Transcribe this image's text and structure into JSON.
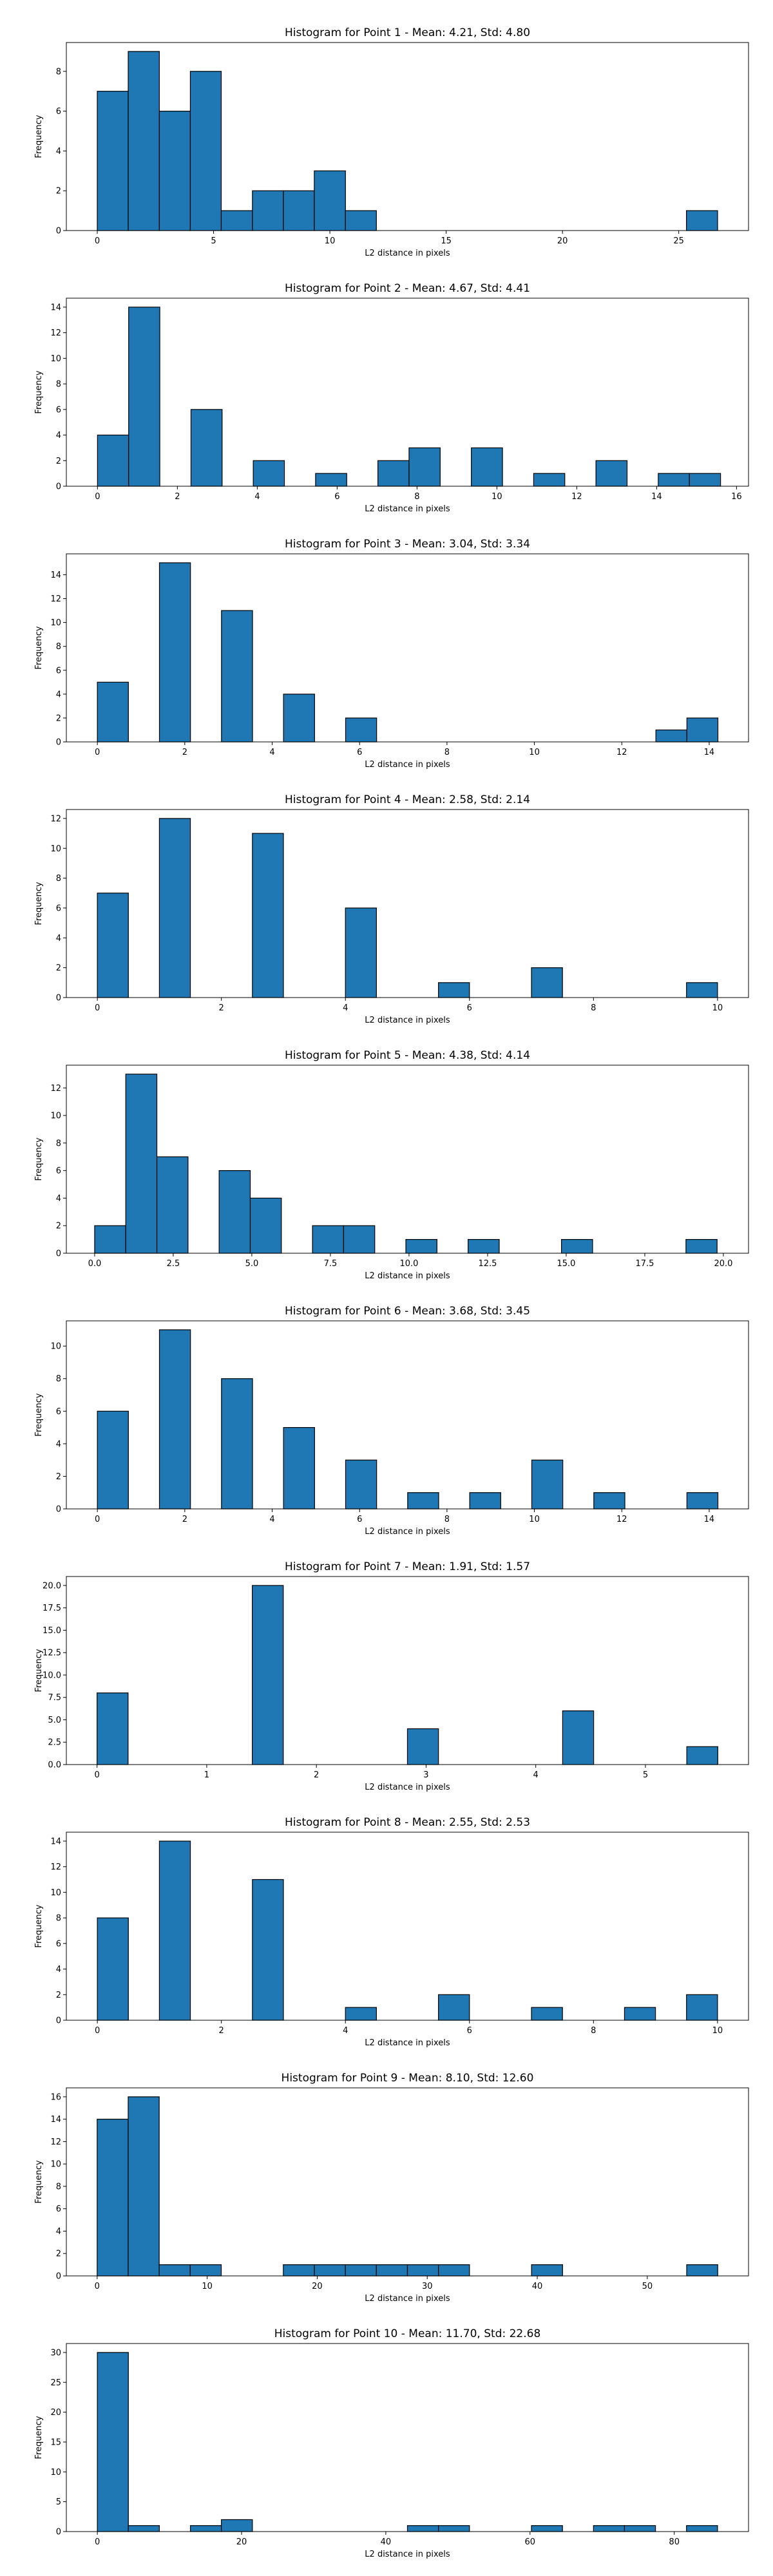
{
  "figure": {
    "bar_color": "#1f77b4",
    "edge_color": "#000000"
  },
  "chart_data": [
    {
      "type": "bar",
      "title": "Histogram for Point 1 - Mean: 4.21, Std: 4.80",
      "xlabel": "L2 distance in pixels",
      "ylabel": "Frequency",
      "xlim": [
        -1.33,
        28.0
      ],
      "ylim": [
        0,
        9.45
      ],
      "xticks": [
        0,
        5,
        10,
        15,
        20,
        25
      ],
      "xtick_labels": [
        "0",
        "5",
        "10",
        "15",
        "20",
        "25"
      ],
      "yticks": [
        0,
        2,
        4,
        6,
        8
      ],
      "bin_edges": [
        0.0,
        1.33,
        2.67,
        4.0,
        5.33,
        6.67,
        8.0,
        9.33,
        10.67,
        12.0,
        13.33,
        14.67,
        16.0,
        17.33,
        18.67,
        20.0,
        21.33,
        22.67,
        24.0,
        25.33,
        26.67
      ],
      "values": [
        7,
        9,
        6,
        8,
        1,
        2,
        2,
        3,
        1,
        0,
        0,
        0,
        0,
        0,
        0,
        0,
        0,
        0,
        0,
        1
      ]
    },
    {
      "type": "bar",
      "title": "Histogram for Point 2 - Mean: 4.67, Std: 4.41",
      "xlabel": "L2 distance in pixels",
      "ylabel": "Frequency",
      "xlim": [
        -0.78,
        16.3
      ],
      "ylim": [
        0,
        14.7
      ],
      "xticks": [
        0,
        2,
        4,
        6,
        8,
        10,
        12,
        14,
        16
      ],
      "xtick_labels": [
        "0",
        "2",
        "4",
        "6",
        "8",
        "10",
        "12",
        "14",
        "16"
      ],
      "yticks": [
        0,
        2,
        4,
        6,
        8,
        10,
        12,
        14
      ],
      "bin_edges": [
        0.0,
        0.78,
        1.56,
        2.34,
        3.12,
        3.9,
        4.68,
        5.46,
        6.24,
        7.02,
        7.8,
        8.58,
        9.36,
        10.14,
        10.92,
        11.7,
        12.48,
        13.26,
        14.04,
        14.82,
        15.6
      ],
      "values": [
        4,
        14,
        0,
        6,
        0,
        2,
        0,
        1,
        0,
        2,
        3,
        0,
        3,
        0,
        1,
        0,
        2,
        0,
        1,
        1
      ]
    },
    {
      "type": "bar",
      "title": "Histogram for Point 3 - Mean: 3.04, Std: 3.34",
      "xlabel": "L2 distance in pixels",
      "ylabel": "Frequency",
      "xlim": [
        -0.71,
        14.9
      ],
      "ylim": [
        0,
        15.75
      ],
      "xticks": [
        0,
        2,
        4,
        6,
        8,
        10,
        12,
        14
      ],
      "xtick_labels": [
        "0",
        "2",
        "4",
        "6",
        "8",
        "10",
        "12",
        "14"
      ],
      "yticks": [
        0,
        2,
        4,
        6,
        8,
        10,
        12,
        14
      ],
      "bin_edges": [
        0.0,
        0.71,
        1.42,
        2.13,
        2.84,
        3.55,
        4.26,
        4.97,
        5.68,
        6.39,
        7.1,
        7.81,
        8.52,
        9.23,
        9.94,
        10.65,
        11.36,
        12.07,
        12.78,
        13.49,
        14.2
      ],
      "values": [
        5,
        0,
        15,
        0,
        11,
        0,
        4,
        0,
        2,
        0,
        0,
        0,
        0,
        0,
        0,
        0,
        0,
        0,
        1,
        2
      ]
    },
    {
      "type": "bar",
      "title": "Histogram for Point 4 - Mean: 2.58, Std: 2.14",
      "xlabel": "L2 distance in pixels",
      "ylabel": "Frequency",
      "xlim": [
        -0.5,
        10.5
      ],
      "ylim": [
        0,
        12.6
      ],
      "xticks": [
        0,
        2,
        4,
        6,
        8,
        10
      ],
      "xtick_labels": [
        "0",
        "2",
        "4",
        "6",
        "8",
        "10"
      ],
      "yticks": [
        0,
        2,
        4,
        6,
        8,
        10,
        12
      ],
      "bin_edges": [
        0.0,
        0.5,
        1.0,
        1.5,
        2.0,
        2.5,
        3.0,
        3.5,
        4.0,
        4.5,
        5.0,
        5.5,
        6.0,
        6.5,
        7.0,
        7.5,
        8.0,
        8.5,
        9.0,
        9.5,
        10.0
      ],
      "values": [
        7,
        0,
        12,
        0,
        0,
        11,
        0,
        0,
        6,
        0,
        0,
        1,
        0,
        0,
        2,
        0,
        0,
        0,
        0,
        1
      ]
    },
    {
      "type": "bar",
      "title": "Histogram for Point 5 - Mean: 4.38, Std: 4.14",
      "xlabel": "L2 distance in pixels",
      "ylabel": "Frequency",
      "xlim": [
        -0.9,
        20.8
      ],
      "ylim": [
        0,
        13.65
      ],
      "xticks": [
        0.0,
        2.5,
        5.0,
        7.5,
        10.0,
        12.5,
        15.0,
        17.5,
        20.0
      ],
      "xtick_labels": [
        "0.0",
        "2.5",
        "5.0",
        "7.5",
        "10.0",
        "12.5",
        "15.0",
        "17.5",
        "20.0"
      ],
      "yticks": [
        0,
        2,
        4,
        6,
        8,
        10,
        12
      ],
      "bin_edges": [
        0.0,
        0.99,
        1.98,
        2.97,
        3.96,
        4.95,
        5.94,
        6.93,
        7.92,
        8.91,
        9.9,
        10.89,
        11.88,
        12.87,
        13.86,
        14.85,
        15.84,
        16.83,
        17.82,
        18.81,
        19.8
      ],
      "values": [
        2,
        13,
        7,
        0,
        6,
        4,
        0,
        2,
        2,
        0,
        1,
        0,
        1,
        0,
        0,
        1,
        0,
        0,
        0,
        1
      ]
    },
    {
      "type": "bar",
      "title": "Histogram for Point 6 - Mean: 3.68, Std: 3.45",
      "xlabel": "L2 distance in pixels",
      "ylabel": "Frequency",
      "xlim": [
        -0.71,
        14.9
      ],
      "ylim": [
        0,
        11.55
      ],
      "xticks": [
        0,
        2,
        4,
        6,
        8,
        10,
        12,
        14
      ],
      "xtick_labels": [
        "0",
        "2",
        "4",
        "6",
        "8",
        "10",
        "12",
        "14"
      ],
      "yticks": [
        0,
        2,
        4,
        6,
        8,
        10
      ],
      "bin_edges": [
        0.0,
        0.71,
        1.42,
        2.13,
        2.84,
        3.55,
        4.26,
        4.97,
        5.68,
        6.39,
        7.1,
        7.81,
        8.52,
        9.23,
        9.94,
        10.65,
        11.36,
        12.07,
        12.78,
        13.49,
        14.2
      ],
      "values": [
        6,
        0,
        11,
        0,
        8,
        0,
        5,
        0,
        3,
        0,
        1,
        0,
        1,
        0,
        3,
        0,
        1,
        0,
        0,
        1
      ]
    },
    {
      "type": "bar",
      "title": "Histogram for Point 7 - Mean: 1.91, Std: 1.57",
      "xlabel": "L2 distance in pixels",
      "ylabel": "Frequency",
      "xlim": [
        -0.28,
        5.94
      ],
      "ylim": [
        0,
        21.0
      ],
      "xticks": [
        0,
        1,
        2,
        3,
        4,
        5
      ],
      "xtick_labels": [
        "0",
        "1",
        "2",
        "3",
        "4",
        "5"
      ],
      "yticks": [
        0.0,
        2.5,
        5.0,
        7.5,
        10.0,
        12.5,
        15.0,
        17.5,
        20.0
      ],
      "ytick_labels": [
        "0.0",
        "2.5",
        "5.0",
        "7.5",
        "10.0",
        "12.5",
        "15.0",
        "17.5",
        "20.0"
      ],
      "bin_edges": [
        0.0,
        0.283,
        0.566,
        0.849,
        1.132,
        1.415,
        1.698,
        1.981,
        2.264,
        2.547,
        2.83,
        3.113,
        3.396,
        3.679,
        3.962,
        4.245,
        4.528,
        4.811,
        5.094,
        5.377,
        5.66
      ],
      "values": [
        8,
        0,
        0,
        0,
        0,
        20,
        0,
        0,
        0,
        0,
        4,
        0,
        0,
        0,
        0,
        6,
        0,
        0,
        0,
        2
      ]
    },
    {
      "type": "bar",
      "title": "Histogram for Point 8 - Mean: 2.55, Std: 2.53",
      "xlabel": "L2 distance in pixels",
      "ylabel": "Frequency",
      "xlim": [
        -0.5,
        10.5
      ],
      "ylim": [
        0,
        14.7
      ],
      "xticks": [
        0,
        2,
        4,
        6,
        8,
        10
      ],
      "xtick_labels": [
        "0",
        "2",
        "4",
        "6",
        "8",
        "10"
      ],
      "yticks": [
        0,
        2,
        4,
        6,
        8,
        10,
        12,
        14
      ],
      "bin_edges": [
        0.0,
        0.5,
        1.0,
        1.5,
        2.0,
        2.5,
        3.0,
        3.5,
        4.0,
        4.5,
        5.0,
        5.5,
        6.0,
        6.5,
        7.0,
        7.5,
        8.0,
        8.5,
        9.0,
        9.5,
        10.0
      ],
      "values": [
        8,
        0,
        14,
        0,
        0,
        11,
        0,
        0,
        1,
        0,
        0,
        2,
        0,
        0,
        1,
        0,
        0,
        1,
        0,
        2
      ]
    },
    {
      "type": "bar",
      "title": "Histogram for Point 9 - Mean: 8.10, Std: 12.60",
      "xlabel": "L2 distance in pixels",
      "ylabel": "Frequency",
      "xlim": [
        -2.8,
        59.2
      ],
      "ylim": [
        0,
        16.8
      ],
      "xticks": [
        0,
        10,
        20,
        30,
        40,
        50
      ],
      "xtick_labels": [
        "0",
        "10",
        "20",
        "30",
        "40",
        "50"
      ],
      "yticks": [
        0,
        2,
        4,
        6,
        8,
        10,
        12,
        14,
        16
      ],
      "bin_edges": [
        0.0,
        2.82,
        5.64,
        8.46,
        11.28,
        14.1,
        16.92,
        19.74,
        22.56,
        25.38,
        28.2,
        31.02,
        33.84,
        36.66,
        39.48,
        42.3,
        45.12,
        47.94,
        50.76,
        53.58,
        56.4
      ],
      "values": [
        14,
        16,
        1,
        1,
        0,
        0,
        1,
        1,
        1,
        1,
        1,
        1,
        0,
        0,
        1,
        0,
        0,
        0,
        0,
        1
      ]
    },
    {
      "type": "bar",
      "title": "Histogram for Point 10 - Mean: 11.70, Std: 22.68",
      "xlabel": "L2 distance in pixels",
      "ylabel": "Frequency",
      "xlim": [
        -4.3,
        90.3
      ],
      "ylim": [
        0,
        31.5
      ],
      "xticks": [
        0,
        20,
        40,
        60,
        80
      ],
      "xtick_labels": [
        "0",
        "20",
        "40",
        "60",
        "80"
      ],
      "yticks": [
        0,
        5,
        10,
        15,
        20,
        25,
        30
      ],
      "bin_edges": [
        0.0,
        4.3,
        8.6,
        12.9,
        17.2,
        21.5,
        25.8,
        30.1,
        34.4,
        38.7,
        43.0,
        47.3,
        51.6,
        55.9,
        60.2,
        64.5,
        68.8,
        73.1,
        77.4,
        81.7,
        86.0
      ],
      "values": [
        30,
        1,
        0,
        1,
        2,
        0,
        0,
        0,
        0,
        0,
        1,
        1,
        0,
        0,
        1,
        0,
        1,
        1,
        0,
        1
      ]
    }
  ]
}
